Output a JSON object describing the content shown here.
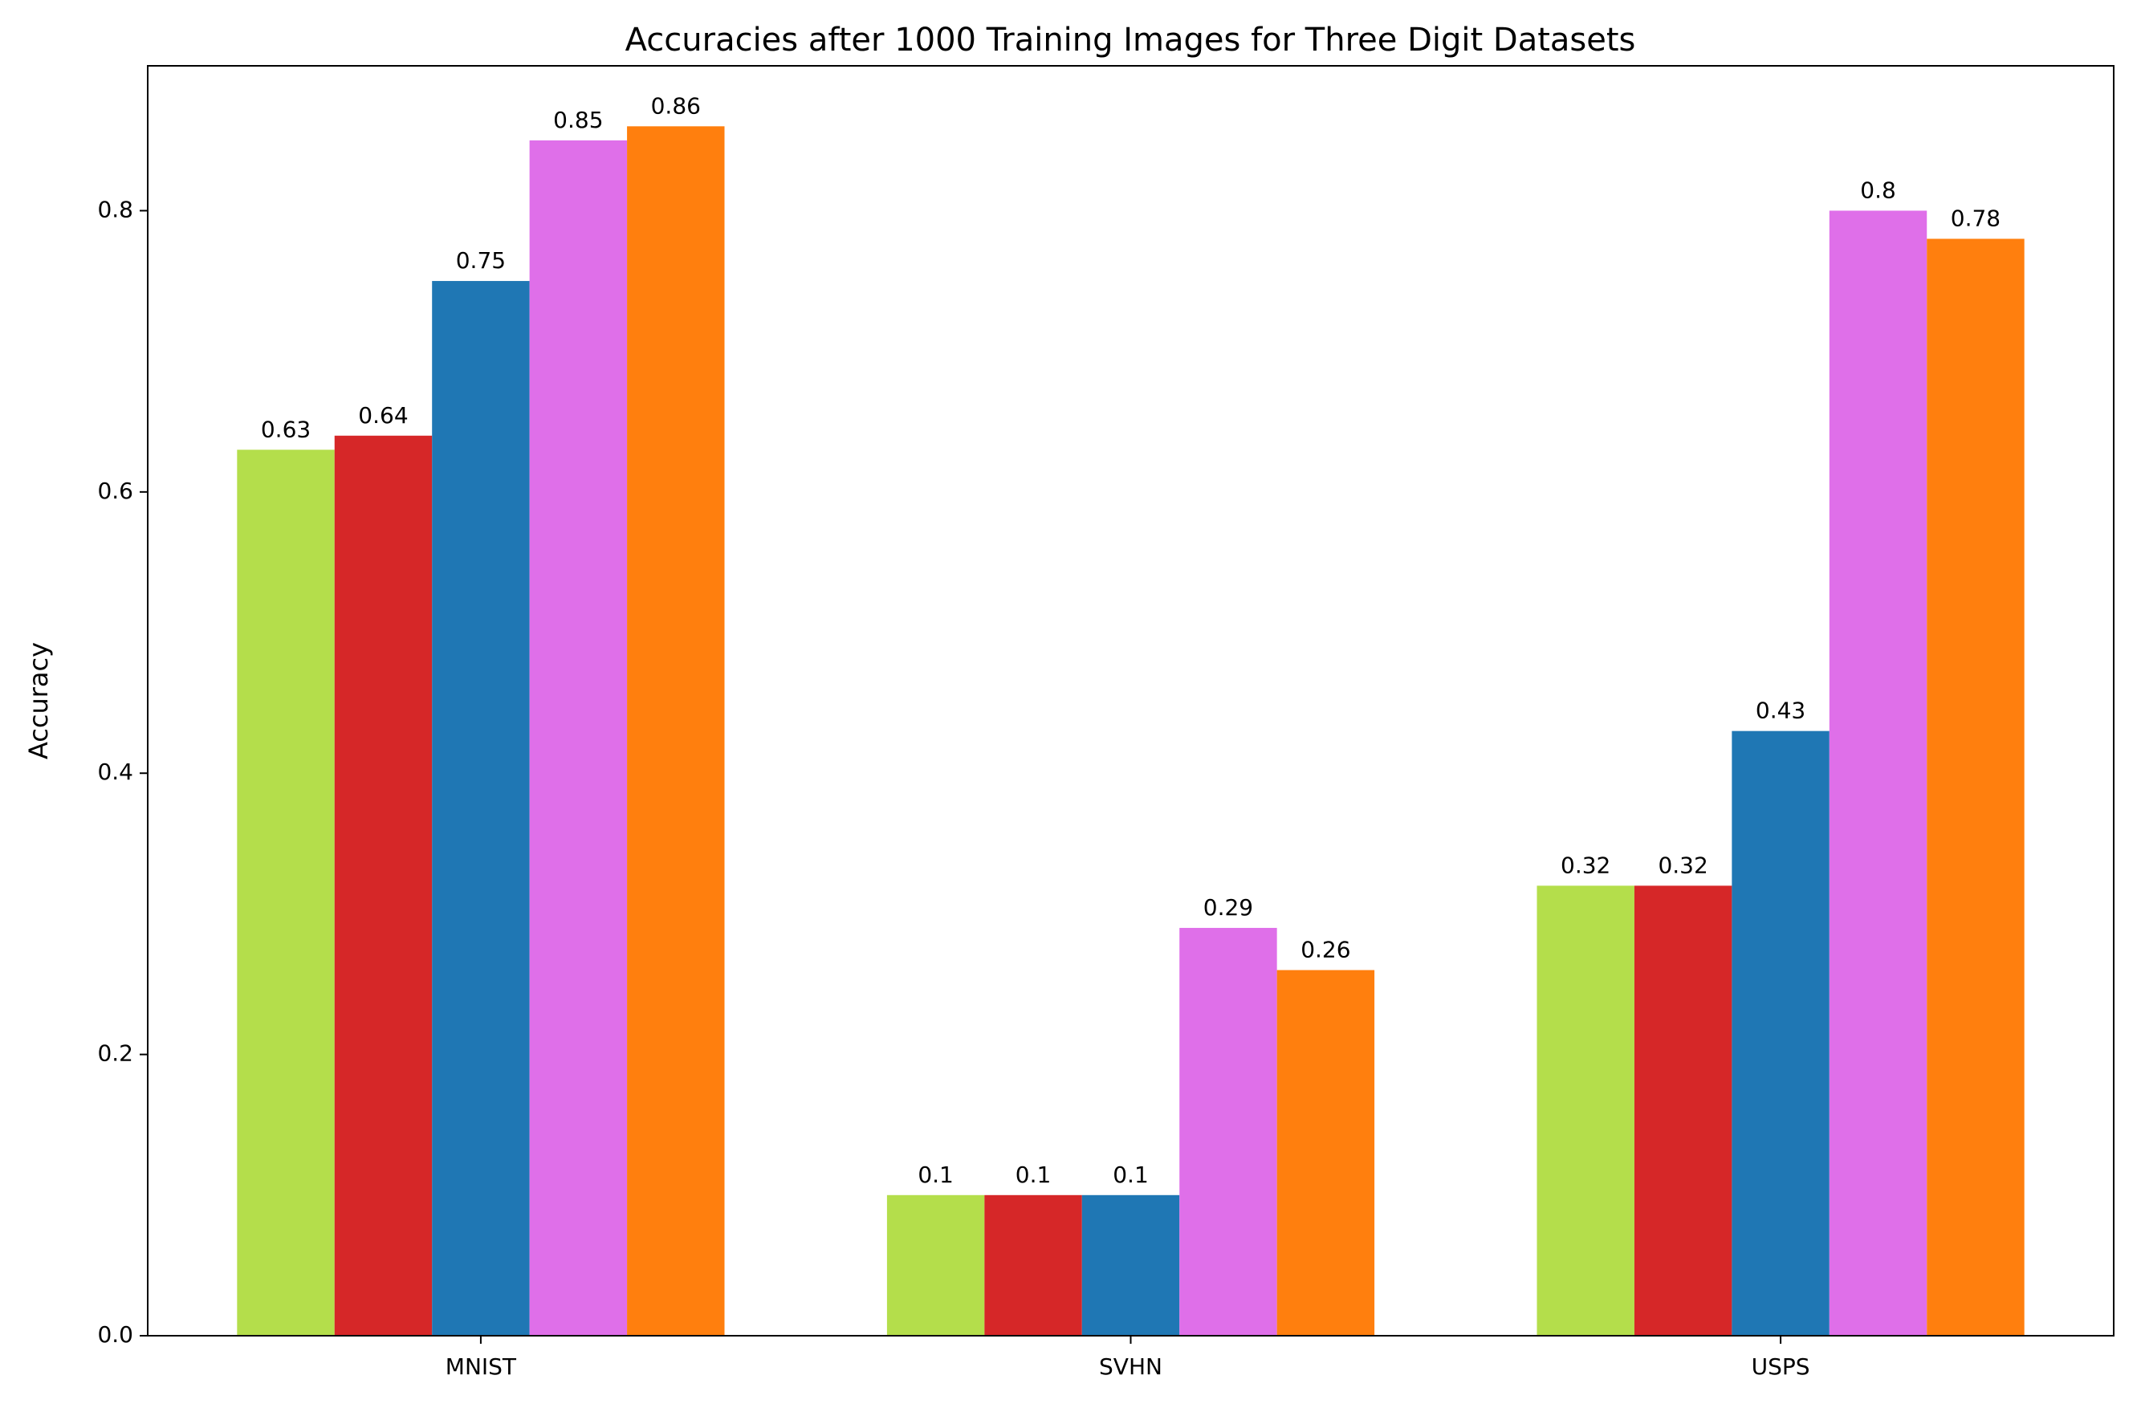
{
  "chart_data": {
    "type": "bar",
    "title": "Accuracies after 1000 Training Images for Three Digit Datasets",
    "y_label": "Accuracy",
    "categories": [
      "MNIST",
      "SVHN",
      "USPS"
    ],
    "series": [
      {
        "color": "#b4de4b",
        "values": [
          0.63,
          0.1,
          0.32
        ]
      },
      {
        "color": "#d62728",
        "values": [
          0.64,
          0.1,
          0.32
        ]
      },
      {
        "color": "#1f77b4",
        "values": [
          0.75,
          0.1,
          0.43
        ]
      },
      {
        "color": "#df6fe9",
        "values": [
          0.85,
          0.29,
          0.8
        ]
      },
      {
        "color": "#ff7f0e",
        "values": [
          0.86,
          0.26,
          0.78
        ]
      }
    ],
    "ylim": [
      0,
      0.903
    ],
    "yticks": [
      {
        "value": 0,
        "label": "0.0"
      },
      0.2,
      0.4,
      0.6,
      0.8
    ],
    "grid": false
  }
}
